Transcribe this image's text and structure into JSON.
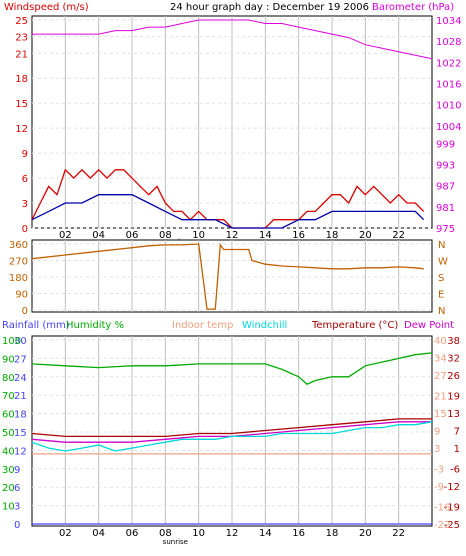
{
  "header": {
    "left_title": "Windspeed (m/s)",
    "center_title": "24 hour graph day : December 19 2006",
    "right_title": "Barometer (hPa)"
  },
  "colors": {
    "windspeed": "#dd0000",
    "windspeed_avg": "#0000aa",
    "barometer": "#dd00dd",
    "direction": "#c06000",
    "rain": "#4444ff",
    "humidity": "#00aa00",
    "indoor": "#f0a080",
    "windchill": "#00d8d8",
    "temperature": "#aa0000",
    "dewpoint": "#cc00cc",
    "frame": "#000000",
    "grid": "#c0c0c0"
  },
  "x_ticks": [
    "02",
    "04",
    "06",
    "08",
    "10",
    "12",
    "14",
    "16",
    "18",
    "20",
    "22"
  ],
  "sunrise_label": "sunrise",
  "legend_bottom": {
    "rain": "Rainfall (mm)",
    "humidity": "Humidity %",
    "indoor": "Indoor temp",
    "windchill": "Windchill",
    "temperature": "Temperature (°C)",
    "dewpoint": "Dew Point"
  },
  "chart_data": [
    {
      "type": "line",
      "name": "wind-barometer",
      "left_axis": {
        "label": "Windspeed (m/s)",
        "ticks": [
          0,
          3,
          6,
          9,
          12,
          15,
          18,
          21,
          23,
          25
        ],
        "range": [
          0,
          25
        ]
      },
      "right_axis": {
        "label": "Barometer (hPa)",
        "ticks": [
          975,
          981,
          987,
          993,
          999,
          1004,
          1010,
          1016,
          1022,
          1028,
          1034
        ],
        "range": [
          975,
          1034
        ]
      },
      "hours_range": [
        0,
        24
      ],
      "series": [
        {
          "key": "barometer",
          "axis": "right",
          "x": [
            0,
            1,
            2,
            3,
            4,
            5,
            6,
            7,
            8,
            9,
            10,
            11,
            12,
            13,
            14,
            15,
            16,
            17,
            18,
            19,
            20,
            21,
            22,
            23,
            24
          ],
          "y": [
            1030,
            1030,
            1030,
            1030,
            1030,
            1031,
            1031,
            1032,
            1032,
            1033,
            1034,
            1034,
            1034,
            1034,
            1033,
            1033,
            1032,
            1031,
            1030,
            1029,
            1027,
            1026,
            1025,
            1024,
            1023
          ]
        },
        {
          "key": "windspeed",
          "axis": "left",
          "x": [
            0,
            0.5,
            1,
            1.5,
            2,
            2.5,
            3,
            3.5,
            4,
            4.5,
            5,
            5.5,
            6,
            6.5,
            7,
            7.5,
            8,
            8.5,
            9,
            9.5,
            10,
            10.5,
            11,
            11.5,
            12,
            12.5,
            13,
            13.5,
            14,
            14.5,
            15,
            15.5,
            16,
            16.5,
            17,
            17.5,
            18,
            18.5,
            19,
            19.5,
            20,
            20.5,
            21,
            21.5,
            22,
            22.5,
            23,
            23.5
          ],
          "y": [
            1,
            3,
            5,
            4,
            7,
            6,
            7,
            6,
            7,
            6,
            7,
            7,
            6,
            5,
            4,
            5,
            3,
            2,
            2,
            1,
            2,
            1,
            1,
            1,
            0,
            0,
            0,
            0,
            0,
            1,
            1,
            1,
            1,
            2,
            2,
            3,
            4,
            4,
            3,
            5,
            4,
            5,
            4,
            3,
            4,
            3,
            3,
            2
          ]
        },
        {
          "key": "windspeed_avg",
          "axis": "left",
          "x": [
            0,
            1,
            2,
            3,
            4,
            5,
            6,
            7,
            8,
            9,
            10,
            11,
            12,
            13,
            14,
            15,
            16,
            17,
            18,
            19,
            20,
            21,
            22,
            23,
            23.5
          ],
          "y": [
            1,
            2,
            3,
            3,
            4,
            4,
            4,
            3,
            2,
            1,
            1,
            1,
            0,
            0,
            0,
            0,
            1,
            1,
            2,
            2,
            2,
            2,
            2,
            2,
            1
          ]
        }
      ]
    },
    {
      "type": "line",
      "name": "wind-direction",
      "left_axis": {
        "ticks": [
          0,
          90,
          180,
          270,
          360
        ],
        "range": [
          0,
          360
        ]
      },
      "right_axis": {
        "ticks": [
          "N",
          "E",
          "S",
          "W",
          "N"
        ]
      },
      "series": [
        {
          "key": "direction",
          "x": [
            0,
            2,
            4,
            6,
            7,
            8,
            9,
            10,
            10.5,
            11,
            11.3,
            11.5,
            12,
            13,
            13.2,
            14,
            15,
            16,
            17,
            18,
            19,
            20,
            21,
            22,
            23,
            23.5
          ],
          "y": [
            280,
            300,
            320,
            340,
            350,
            355,
            355,
            360,
            5,
            5,
            355,
            330,
            330,
            330,
            270,
            250,
            240,
            235,
            230,
            225,
            225,
            230,
            230,
            235,
            230,
            225
          ]
        }
      ]
    },
    {
      "type": "line",
      "name": "temperature-humidity",
      "left_axis": {
        "label": "Rainfall (mm)",
        "ticks": [
          0,
          3,
          6,
          9,
          12,
          15,
          18,
          21,
          24,
          27,
          30
        ],
        "range": [
          0,
          30
        ]
      },
      "left_axis2": {
        "label": "Humidity %",
        "ticks": [
          10,
          20,
          30,
          40,
          50,
          60,
          70,
          80,
          90,
          100
        ],
        "range": [
          0,
          100
        ]
      },
      "right_axis": {
        "label": "Temperature (°C)",
        "ticks": [
          -25,
          -19,
          -12,
          -6,
          1,
          7,
          13,
          19,
          26,
          32,
          38
        ],
        "range": [
          -25,
          38
        ]
      },
      "right_axis2": {
        "ticks": [
          -22,
          -16,
          -9,
          -3,
          3,
          9,
          15,
          21,
          27,
          34,
          40
        ],
        "range": [
          -25,
          40
        ]
      },
      "series": [
        {
          "key": "humidity",
          "axis": "left2",
          "x": [
            0,
            2,
            4,
            6,
            8,
            10,
            12,
            14,
            15,
            16,
            16.5,
            17,
            18,
            19,
            20,
            21,
            22,
            23,
            24
          ],
          "y": [
            87,
            86,
            85,
            86,
            86,
            87,
            87,
            87,
            84,
            80,
            76,
            78,
            80,
            80,
            86,
            88,
            90,
            92,
            93
          ]
        },
        {
          "key": "temperature",
          "axis": "right",
          "x": [
            0,
            2,
            4,
            6,
            8,
            10,
            12,
            14,
            16,
            18,
            20,
            22,
            24
          ],
          "y": [
            6,
            5,
            5,
            5,
            5,
            6,
            6,
            7,
            8,
            9,
            10,
            11,
            11
          ]
        },
        {
          "key": "dewpoint",
          "axis": "right",
          "x": [
            0,
            2,
            4,
            6,
            8,
            10,
            12,
            14,
            16,
            18,
            20,
            22,
            24
          ],
          "y": [
            4,
            3,
            3,
            3,
            4,
            5,
            5,
            6,
            7,
            8,
            9,
            10,
            10
          ]
        },
        {
          "key": "windchill",
          "axis": "right",
          "x": [
            0,
            1,
            2,
            3,
            4,
            5,
            6,
            7,
            8,
            9,
            10,
            11,
            12,
            13,
            14,
            15,
            16,
            17,
            18,
            19,
            20,
            21,
            22,
            23,
            24
          ],
          "y": [
            3,
            1,
            0,
            1,
            2,
            0,
            1,
            2,
            3,
            4,
            4,
            4,
            5,
            5,
            5,
            6,
            6,
            6,
            6,
            7,
            8,
            8,
            9,
            9,
            10
          ]
        },
        {
          "key": "indoor",
          "axis": "right",
          "x": [
            0,
            24
          ],
          "y": [
            -1,
            -1
          ]
        },
        {
          "key": "rain",
          "axis": "left",
          "x": [
            0,
            24
          ],
          "y": [
            0,
            0
          ]
        }
      ]
    }
  ]
}
